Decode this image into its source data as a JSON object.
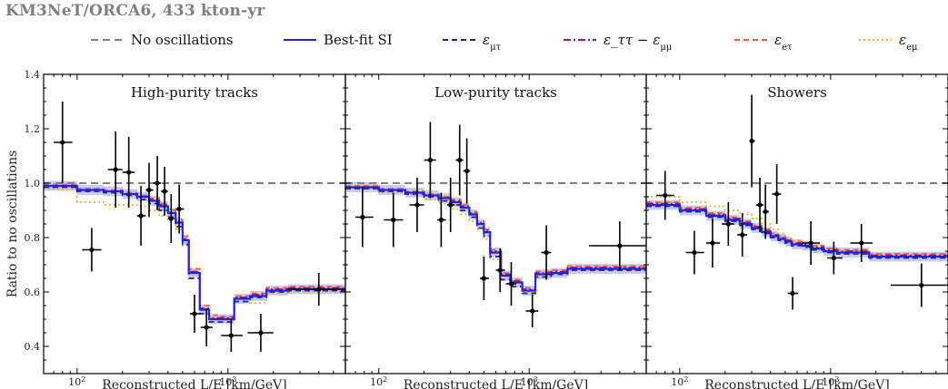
{
  "figure": {
    "title": "KM3NeT/ORCA6, 433 kton-yr",
    "ylabel": "Ratio to no oscillations",
    "xlabel": "Reconstructed L/E [km/GeV]",
    "colors": {
      "best_fit": "#1f23e6",
      "band": "#a9b3ee",
      "no_osc": "#7f7f7f"
    }
  },
  "legend": [
    {
      "label": "No oscillations",
      "color": "#7f7f7f",
      "dash": "8,5",
      "width": 2
    },
    {
      "label": "Best-fit SI",
      "color": "#1f23e6",
      "dash": "",
      "width": 2
    },
    {
      "label": "ε_μτ",
      "color": "#2a1f8f",
      "dash": "6,4",
      "width": 2
    },
    {
      "label": "ε_ττ − ε_μμ",
      "color": "#a0145a",
      "dash": "8,3,2,3",
      "width": 2
    },
    {
      "label": "ε_eτ",
      "color": "#ff5a2e",
      "dash": "6,4",
      "width": 2
    },
    {
      "label": "ε_eμ",
      "color": "#f0b020",
      "dash": "2,3",
      "width": 2
    }
  ],
  "chart_data": [
    {
      "type": "line",
      "title": "High-purity tracks",
      "xscale": "log",
      "xlim": [
        60,
        6000
      ],
      "ylim": [
        0.3,
        1.4
      ],
      "xticks": [
        "10^2",
        "10^3"
      ],
      "yticks": [
        0.4,
        0.6,
        0.8,
        1.0,
        1.2,
        1.4
      ],
      "no_oscillations": 1.0,
      "bin_edges": [
        60,
        100,
        150,
        200,
        250,
        300,
        350,
        400,
        450,
        500,
        550,
        650,
        750,
        900,
        1100,
        1400,
        1800,
        2500,
        6000
      ],
      "series": [
        {
          "name": "Best-fit SI",
          "values": [
            0.99,
            0.975,
            0.97,
            0.96,
            0.95,
            0.935,
            0.915,
            0.89,
            0.855,
            0.79,
            0.67,
            0.535,
            0.5,
            0.5,
            0.575,
            0.585,
            0.605,
            0.61
          ]
        },
        {
          "name": "ε_μτ",
          "values": [
            0.985,
            0.97,
            0.965,
            0.955,
            0.94,
            0.925,
            0.9,
            0.875,
            0.84,
            0.775,
            0.65,
            0.52,
            0.49,
            0.49,
            0.565,
            0.58,
            0.6,
            0.605
          ]
        },
        {
          "name": "ε_ττ − ε_μμ",
          "values": [
            0.99,
            0.975,
            0.97,
            0.96,
            0.95,
            0.94,
            0.92,
            0.89,
            0.86,
            0.795,
            0.675,
            0.54,
            0.505,
            0.505,
            0.58,
            0.59,
            0.61,
            0.615
          ]
        },
        {
          "name": "ε_eτ",
          "values": [
            0.995,
            0.98,
            0.975,
            0.965,
            0.955,
            0.945,
            0.925,
            0.9,
            0.865,
            0.805,
            0.685,
            0.55,
            0.515,
            0.51,
            0.585,
            0.595,
            0.615,
            0.62
          ]
        },
        {
          "name": "ε_eμ",
          "values": [
            0.98,
            0.93,
            0.92,
            0.92,
            0.915,
            0.9,
            0.88,
            0.86,
            0.83,
            0.77,
            0.66,
            0.535,
            0.505,
            0.505,
            0.575,
            0.56,
            0.595,
            0.6
          ]
        }
      ],
      "points": [
        {
          "x": 80,
          "y": 1.15,
          "xerr": [
            70,
            93
          ],
          "yerr": 0.15
        },
        {
          "x": 125,
          "y": 0.755,
          "xerr": [
            108,
            145
          ],
          "yerr": 0.08
        },
        {
          "x": 180,
          "y": 1.05,
          "xerr": [
            160,
            200
          ],
          "yerr": 0.14
        },
        {
          "x": 220,
          "y": 1.04,
          "xerr": [
            200,
            240
          ],
          "yerr": 0.13
        },
        {
          "x": 265,
          "y": 0.88,
          "xerr": [
            250,
            285
          ],
          "yerr": 0.11
        },
        {
          "x": 300,
          "y": 0.975,
          "xerr": [
            285,
            320
          ],
          "yerr": 0.1
        },
        {
          "x": 340,
          "y": 1.0,
          "xerr": [
            320,
            360
          ],
          "yerr": 0.1
        },
        {
          "x": 380,
          "y": 0.97,
          "xerr": [
            360,
            400
          ],
          "yerr": 0.09
        },
        {
          "x": 420,
          "y": 0.87,
          "xerr": [
            400,
            440
          ],
          "yerr": 0.09
        },
        {
          "x": 475,
          "y": 0.905,
          "xerr": [
            450,
            510
          ],
          "yerr": 0.09
        },
        {
          "x": 600,
          "y": 0.52,
          "xerr": [
            560,
            650
          ],
          "yerr": 0.07
        },
        {
          "x": 720,
          "y": 0.47,
          "xerr": [
            660,
            790
          ],
          "yerr": 0.07
        },
        {
          "x": 1050,
          "y": 0.44,
          "xerr": [
            900,
            1250
          ],
          "yerr": 0.06
        },
        {
          "x": 1650,
          "y": 0.45,
          "xerr": [
            1350,
            2000
          ],
          "yerr": 0.07
        },
        {
          "x": 4000,
          "y": 0.61,
          "xerr": [
            2500,
            6000
          ],
          "yerr": 0.06
        }
      ]
    },
    {
      "type": "line",
      "title": "Low-purity tracks",
      "xscale": "log",
      "xlim": [
        60,
        6000
      ],
      "ylim": [
        0.3,
        1.4
      ],
      "xticks": [
        "10^2",
        "10^3"
      ],
      "yticks": [
        0.4,
        0.6,
        0.8,
        1.0,
        1.2,
        1.4
      ],
      "no_oscillations": 1.0,
      "bin_edges": [
        60,
        100,
        150,
        200,
        250,
        300,
        350,
        400,
        450,
        500,
        550,
        650,
        750,
        900,
        1100,
        1400,
        1800,
        2500,
        6000
      ],
      "series": [
        {
          "name": "Best-fit SI",
          "values": [
            0.985,
            0.975,
            0.965,
            0.955,
            0.945,
            0.93,
            0.91,
            0.885,
            0.85,
            0.82,
            0.745,
            0.66,
            0.635,
            0.605,
            0.665,
            0.67,
            0.685,
            0.685
          ]
        },
        {
          "name": "ε_μτ",
          "values": [
            0.98,
            0.97,
            0.96,
            0.95,
            0.935,
            0.92,
            0.9,
            0.875,
            0.835,
            0.805,
            0.73,
            0.645,
            0.62,
            0.595,
            0.655,
            0.665,
            0.68,
            0.68
          ]
        },
        {
          "name": "ε_ττ − ε_μμ",
          "values": [
            0.985,
            0.975,
            0.965,
            0.955,
            0.945,
            0.935,
            0.915,
            0.89,
            0.855,
            0.825,
            0.75,
            0.665,
            0.64,
            0.61,
            0.67,
            0.675,
            0.69,
            0.69
          ]
        },
        {
          "name": "ε_eτ",
          "values": [
            0.99,
            0.98,
            0.97,
            0.96,
            0.95,
            0.94,
            0.92,
            0.895,
            0.86,
            0.83,
            0.755,
            0.67,
            0.645,
            0.615,
            0.675,
            0.68,
            0.695,
            0.695
          ]
        },
        {
          "name": "ε_eμ",
          "values": [
            0.98,
            0.965,
            0.955,
            0.94,
            0.925,
            0.905,
            0.885,
            0.86,
            0.83,
            0.795,
            0.72,
            0.645,
            0.62,
            0.6,
            0.655,
            0.665,
            0.68,
            0.68
          ]
        }
      ],
      "points": [
        {
          "x": 78,
          "y": 0.875,
          "xerr": [
            70,
            92
          ],
          "yerr": 0.11
        },
        {
          "x": 125,
          "y": 0.865,
          "xerr": [
            108,
            145
          ],
          "yerr": 0.1
        },
        {
          "x": 180,
          "y": 0.92,
          "xerr": [
            160,
            200
          ],
          "yerr": 0.1
        },
        {
          "x": 220,
          "y": 1.085,
          "xerr": [
            200,
            240
          ],
          "yerr": 0.14
        },
        {
          "x": 260,
          "y": 0.865,
          "xerr": [
            245,
            280
          ],
          "yerr": 0.1
        },
        {
          "x": 300,
          "y": 0.92,
          "xerr": [
            285,
            320
          ],
          "yerr": 0.1
        },
        {
          "x": 345,
          "y": 1.085,
          "xerr": [
            325,
            365
          ],
          "yerr": 0.13
        },
        {
          "x": 385,
          "y": 1.045,
          "xerr": [
            365,
            405
          ],
          "yerr": 0.12
        },
        {
          "x": 500,
          "y": 0.65,
          "xerr": [
            470,
            540
          ],
          "yerr": 0.08
        },
        {
          "x": 640,
          "y": 0.68,
          "xerr": [
            600,
            690
          ],
          "yerr": 0.08
        },
        {
          "x": 760,
          "y": 0.63,
          "xerr": [
            700,
            820
          ],
          "yerr": 0.08
        },
        {
          "x": 1050,
          "y": 0.53,
          "xerr": [
            950,
            1150
          ],
          "yerr": 0.06
        },
        {
          "x": 1300,
          "y": 0.745,
          "xerr": [
            1200,
            1400
          ],
          "yerr": 0.1
        },
        {
          "x": 4000,
          "y": 0.77,
          "xerr": [
            2500,
            6000
          ],
          "yerr": 0.09
        }
      ]
    },
    {
      "type": "line",
      "title": "Showers",
      "xscale": "log",
      "xlim": [
        60,
        6000
      ],
      "ylim": [
        0.3,
        1.4
      ],
      "xticks": [
        "10^2",
        "10^3"
      ],
      "yticks": [
        0.4,
        0.6,
        0.8,
        1.0,
        1.2,
        1.4
      ],
      "no_oscillations": 1.0,
      "bin_edges": [
        60,
        100,
        150,
        200,
        250,
        300,
        350,
        400,
        450,
        500,
        550,
        650,
        750,
        900,
        1100,
        1400,
        1800,
        2500,
        6000
      ],
      "series": [
        {
          "name": "Best-fit SI",
          "values": [
            0.92,
            0.9,
            0.88,
            0.865,
            0.85,
            0.835,
            0.82,
            0.805,
            0.795,
            0.785,
            0.775,
            0.77,
            0.76,
            0.75,
            0.745,
            0.745,
            0.73,
            0.73
          ]
        },
        {
          "name": "ε_μτ",
          "values": [
            0.915,
            0.895,
            0.875,
            0.86,
            0.845,
            0.83,
            0.815,
            0.8,
            0.79,
            0.78,
            0.77,
            0.765,
            0.755,
            0.745,
            0.74,
            0.74,
            0.725,
            0.725
          ]
        },
        {
          "name": "ε_ττ − ε_μμ",
          "values": [
            0.925,
            0.905,
            0.885,
            0.87,
            0.855,
            0.84,
            0.825,
            0.81,
            0.8,
            0.79,
            0.78,
            0.775,
            0.765,
            0.755,
            0.75,
            0.75,
            0.735,
            0.735
          ]
        },
        {
          "name": "ε_eτ",
          "values": [
            0.93,
            0.91,
            0.89,
            0.875,
            0.86,
            0.845,
            0.83,
            0.815,
            0.805,
            0.795,
            0.785,
            0.78,
            0.77,
            0.76,
            0.755,
            0.755,
            0.74,
            0.74
          ]
        },
        {
          "name": "ε_eμ",
          "values": [
            0.95,
            0.93,
            0.915,
            0.9,
            0.885,
            0.87,
            0.85,
            0.83,
            0.815,
            0.8,
            0.79,
            0.78,
            0.77,
            0.76,
            0.75,
            0.75,
            0.735,
            0.735
          ]
        }
      ],
      "points": [
        {
          "x": 80,
          "y": 0.955,
          "xerr": [
            70,
            92
          ],
          "yerr": 0.09
        },
        {
          "x": 125,
          "y": 0.745,
          "xerr": [
            110,
            145
          ],
          "yerr": 0.08
        },
        {
          "x": 165,
          "y": 0.78,
          "xerr": [
            150,
            185
          ],
          "yerr": 0.09
        },
        {
          "x": 210,
          "y": 0.85,
          "xerr": [
            190,
            230
          ],
          "yerr": 0.08
        },
        {
          "x": 260,
          "y": 0.81,
          "xerr": [
            240,
            280
          ],
          "yerr": 0.08
        },
        {
          "x": 300,
          "y": 1.155,
          "xerr": [
            290,
            315
          ],
          "yerr": 0.17
        },
        {
          "x": 340,
          "y": 0.92,
          "xerr": [
            320,
            360
          ],
          "yerr": 0.1
        },
        {
          "x": 370,
          "y": 0.895,
          "xerr": [
            355,
            390
          ],
          "yerr": 0.1
        },
        {
          "x": 440,
          "y": 0.96,
          "xerr": [
            410,
            470
          ],
          "yerr": 0.11
        },
        {
          "x": 560,
          "y": 0.595,
          "xerr": [
            520,
            610
          ],
          "yerr": 0.06
        },
        {
          "x": 740,
          "y": 0.78,
          "xerr": [
            650,
            850
          ],
          "yerr": 0.08
        },
        {
          "x": 1050,
          "y": 0.725,
          "xerr": [
            950,
            1200
          ],
          "yerr": 0.06
        },
        {
          "x": 1600,
          "y": 0.78,
          "xerr": [
            1350,
            1900
          ],
          "yerr": 0.07
        },
        {
          "x": 4000,
          "y": 0.625,
          "xerr": [
            2500,
            6000
          ],
          "yerr": 0.08
        }
      ]
    }
  ]
}
